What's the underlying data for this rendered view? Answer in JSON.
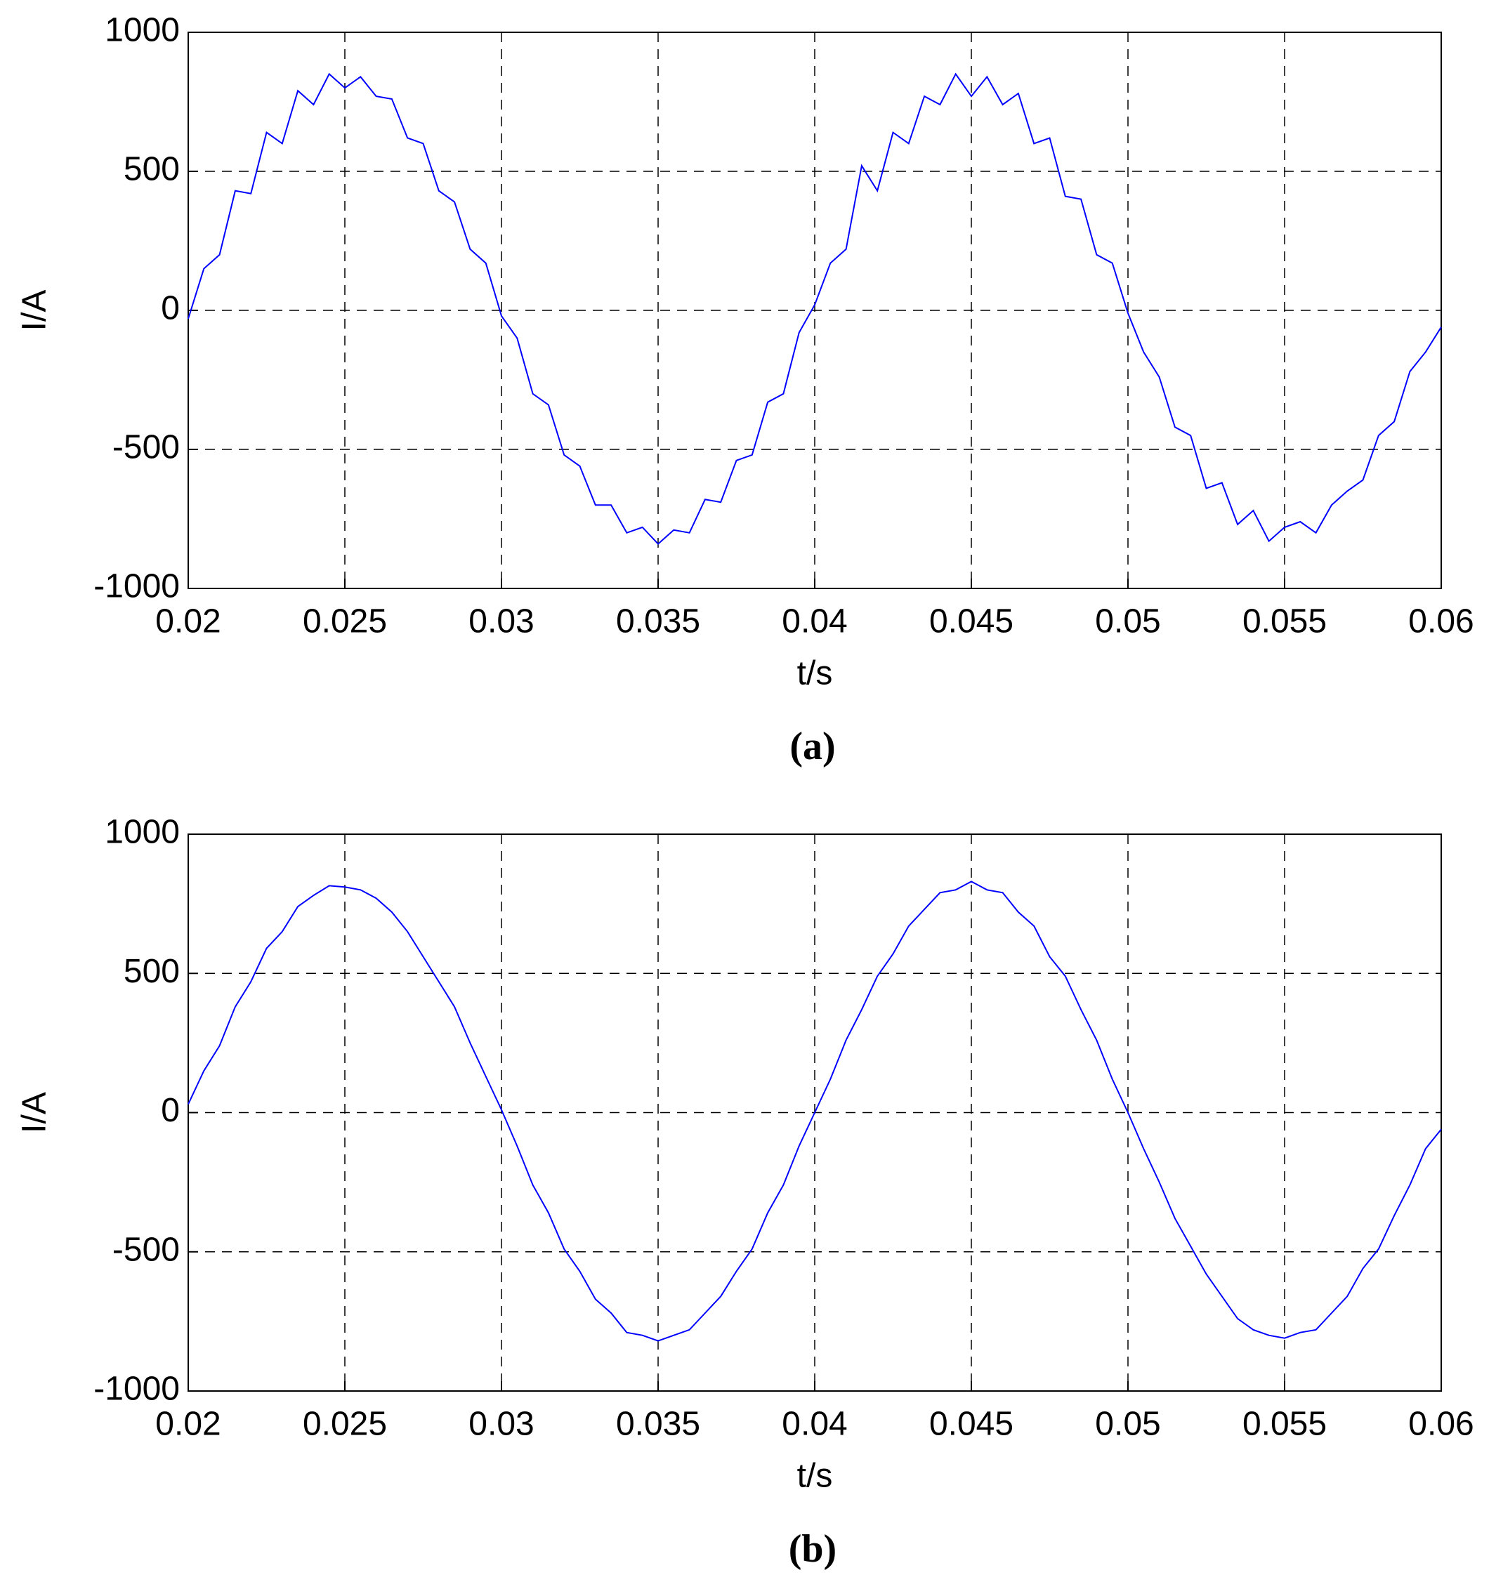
{
  "chart_data": [
    {
      "type": "line",
      "panel_label": "(a)",
      "x_label": "t/s",
      "y_label": "I/A",
      "xlim": [
        0.02,
        0.06
      ],
      "xticks": [
        0.02,
        0.025,
        0.03,
        0.035,
        0.04,
        0.045,
        0.05,
        0.055,
        0.06
      ],
      "ylim": [
        -1000,
        1000
      ],
      "yticks": [
        -1000,
        -500,
        0,
        500,
        1000
      ],
      "grid": true,
      "x": [
        0.02,
        0.0205,
        0.021,
        0.0215,
        0.022,
        0.0225,
        0.023,
        0.0235,
        0.024,
        0.0245,
        0.025,
        0.0255,
        0.026,
        0.0265,
        0.027,
        0.0275,
        0.028,
        0.0285,
        0.029,
        0.0295,
        0.03,
        0.0305,
        0.031,
        0.0315,
        0.032,
        0.0325,
        0.033,
        0.0335,
        0.034,
        0.0345,
        0.035,
        0.0355,
        0.036,
        0.0365,
        0.037,
        0.0375,
        0.038,
        0.0385,
        0.039,
        0.0395,
        0.04,
        0.0405,
        0.041,
        0.0415,
        0.042,
        0.0425,
        0.043,
        0.0435,
        0.044,
        0.0445,
        0.045,
        0.0455,
        0.046,
        0.0465,
        0.047,
        0.0475,
        0.048,
        0.0485,
        0.049,
        0.0495,
        0.05,
        0.0505,
        0.051,
        0.0515,
        0.052,
        0.0525,
        0.053,
        0.0535,
        0.054,
        0.0545,
        0.055,
        0.0555,
        0.056,
        0.0565,
        0.057,
        0.0575,
        0.058,
        0.0585,
        0.059,
        0.0595,
        0.06
      ],
      "series": [
        {
          "color": "#0000ff",
          "values": [
            -30,
            150,
            200,
            430,
            420,
            640,
            600,
            790,
            740,
            850,
            800,
            840,
            770,
            760,
            620,
            600,
            430,
            390,
            220,
            170,
            -20,
            -100,
            -300,
            -340,
            -520,
            -560,
            -700,
            -700,
            -800,
            -780,
            -840,
            -790,
            -800,
            -680,
            -690,
            -540,
            -520,
            -330,
            -300,
            -80,
            20,
            170,
            220,
            520,
            430,
            640,
            600,
            770,
            740,
            850,
            770,
            840,
            740,
            780,
            600,
            620,
            410,
            400,
            200,
            170,
            -10,
            -150,
            -240,
            -420,
            -450,
            -640,
            -620,
            -770,
            -720,
            -830,
            -780,
            -760,
            -800,
            -700,
            -650,
            -610,
            -450,
            -400,
            -220,
            -150,
            -60
          ]
        }
      ]
    },
    {
      "type": "line",
      "panel_label": "(b)",
      "x_label": "t/s",
      "y_label": "I/A",
      "xlim": [
        0.02,
        0.06
      ],
      "xticks": [
        0.02,
        0.025,
        0.03,
        0.035,
        0.04,
        0.045,
        0.05,
        0.055,
        0.06
      ],
      "ylim": [
        -1000,
        1000
      ],
      "yticks": [
        -1000,
        -500,
        0,
        500,
        1000
      ],
      "grid": true,
      "x": [
        0.02,
        0.0205,
        0.021,
        0.0215,
        0.022,
        0.0225,
        0.023,
        0.0235,
        0.024,
        0.0245,
        0.025,
        0.0255,
        0.026,
        0.0265,
        0.027,
        0.0275,
        0.028,
        0.0285,
        0.029,
        0.0295,
        0.03,
        0.0305,
        0.031,
        0.0315,
        0.032,
        0.0325,
        0.033,
        0.0335,
        0.034,
        0.0345,
        0.035,
        0.0355,
        0.036,
        0.0365,
        0.037,
        0.0375,
        0.038,
        0.0385,
        0.039,
        0.0395,
        0.04,
        0.0405,
        0.041,
        0.0415,
        0.042,
        0.0425,
        0.043,
        0.0435,
        0.044,
        0.0445,
        0.045,
        0.0455,
        0.046,
        0.0465,
        0.047,
        0.0475,
        0.048,
        0.0485,
        0.049,
        0.0495,
        0.05,
        0.0505,
        0.051,
        0.0515,
        0.052,
        0.0525,
        0.053,
        0.0535,
        0.054,
        0.0545,
        0.055,
        0.0555,
        0.056,
        0.0565,
        0.057,
        0.0575,
        0.058,
        0.0585,
        0.059,
        0.0595,
        0.06
      ],
      "series": [
        {
          "color": "#0000ff",
          "values": [
            30,
            150,
            240,
            380,
            470,
            590,
            650,
            740,
            780,
            815,
            810,
            800,
            770,
            720,
            650,
            560,
            470,
            380,
            250,
            130,
            10,
            -120,
            -260,
            -360,
            -490,
            -570,
            -670,
            -720,
            -790,
            -800,
            -820,
            -800,
            -780,
            -720,
            -660,
            -570,
            -490,
            -360,
            -260,
            -120,
            0,
            120,
            260,
            370,
            490,
            570,
            670,
            730,
            790,
            800,
            830,
            800,
            790,
            720,
            670,
            560,
            490,
            370,
            260,
            120,
            0,
            -130,
            -250,
            -380,
            -480,
            -580,
            -660,
            -740,
            -780,
            -800,
            -810,
            -790,
            -780,
            -720,
            -660,
            -560,
            -490,
            -370,
            -260,
            -130,
            -60
          ]
        }
      ]
    }
  ]
}
